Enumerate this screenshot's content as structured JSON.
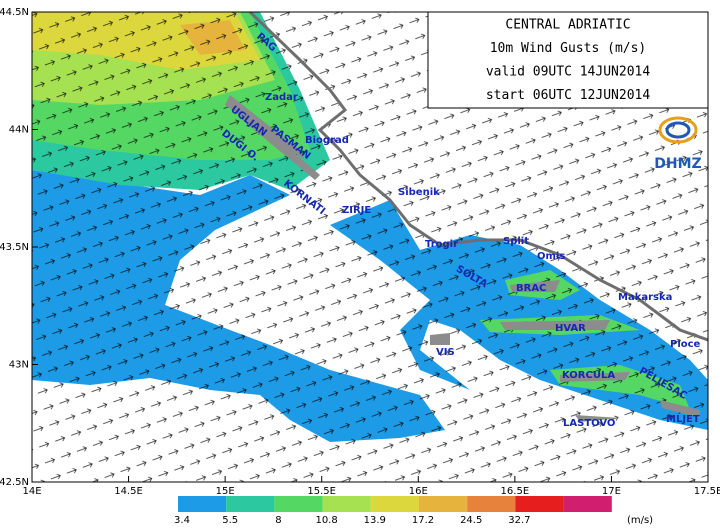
{
  "map": {
    "title_lines": [
      "CENTRAL ADRIATIC",
      "10m Wind Gusts (m/s)",
      "valid 09UTC 14JUN2014",
      "start 06UTC 12JUN2014"
    ],
    "logo": "DHMZ",
    "xlim": [
      14,
      17.5
    ],
    "ylim": [
      42.5,
      44.5
    ],
    "xticks": [
      {
        "value": 14,
        "label": "14E"
      },
      {
        "value": 14.5,
        "label": "14.5E"
      },
      {
        "value": 15,
        "label": "15E"
      },
      {
        "value": 15.5,
        "label": "15.5E"
      },
      {
        "value": 16,
        "label": "16E"
      },
      {
        "value": 16.5,
        "label": "16.5E"
      },
      {
        "value": 17,
        "label": "17E"
      },
      {
        "value": 17.5,
        "label": "17.5E"
      }
    ],
    "yticks": [
      {
        "value": 42.5,
        "label": "42.5N"
      },
      {
        "value": 43,
        "label": "43N"
      },
      {
        "value": 43.5,
        "label": "43.5N"
      },
      {
        "value": 44,
        "label": "44N"
      },
      {
        "value": 44.5,
        "label": "44.5N"
      }
    ],
    "places": [
      "PAG",
      "Zadar",
      "UGLJAN",
      "PASMAN",
      "Biograd",
      "DUGI O.",
      "KORNATI",
      "Sibenik",
      "ZIRJE",
      "Trogir",
      "Split",
      "Omis",
      "SOLTA",
      "BRAC",
      "Makarska",
      "HVAR",
      "VIS",
      "KORCULA",
      "Ploce",
      "PELJESAC",
      "LASTOVO",
      "MLJET"
    ],
    "colorbar": {
      "labels": [
        3.4,
        5.5,
        8,
        10.8,
        13.9,
        17.2,
        24.5,
        32.7
      ],
      "colors": [
        "#1e9be6",
        "#2cc8a0",
        "#55d764",
        "#a5e150",
        "#dcd73c",
        "#e6b43c",
        "#e6823c",
        "#e61e1e",
        "#d21e6e"
      ],
      "unit": "(m/s)"
    }
  }
}
